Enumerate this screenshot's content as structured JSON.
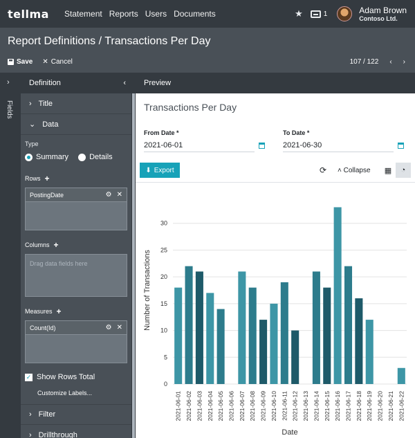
{
  "app": {
    "brand": "tellma"
  },
  "nav": {
    "items": [
      "Statement",
      "Reports",
      "Users",
      "Documents"
    ]
  },
  "header": {
    "inbox_count": "1",
    "user_name": "Adam Brown",
    "company": "Contoso Ltd."
  },
  "titlebar": {
    "title": "Report Definitions / Transactions Per Day",
    "save_label": "Save",
    "cancel_label": "Cancel",
    "pager": "107 / 122"
  },
  "fields_panel": {
    "label": "Fields"
  },
  "definition": {
    "header": "Definition",
    "sections": {
      "title": "Title",
      "data": "Data",
      "filter": "Filter",
      "drillthrough": "Drillthrough"
    },
    "type_label": "Type",
    "type_options": {
      "summary": "Summary",
      "details": "Details"
    },
    "rows_label": "Rows",
    "rows_chip": "PostingDate",
    "columns_label": "Columns",
    "columns_placeholder": "Drag data fields here",
    "measures_label": "Measures",
    "measures_chip": "Count(Id)",
    "show_rows_total": "Show Rows Total",
    "customize_labels": "Customize Labels..."
  },
  "preview": {
    "header": "Preview",
    "report_title": "Transactions Per Day",
    "from_date_label": "From Date *",
    "from_date_value": "2021-06-01",
    "to_date_label": "To Date *",
    "to_date_value": "2021-06-30",
    "export_label": "Export",
    "collapse_label": "Collapse"
  },
  "colors": {
    "accent": "#17a2b8",
    "bar_light": "#3d96a6",
    "bar_mid": "#2d7c8c",
    "bar_dark": "#1e5a69"
  },
  "chart_data": {
    "type": "bar",
    "xlabel": "Date",
    "ylabel": "Number of Transactions",
    "ylim": [
      0,
      35
    ],
    "yticks": [
      0,
      5,
      10,
      15,
      20,
      25,
      30
    ],
    "grid": true,
    "categories": [
      "2021-06-01",
      "2021-06-02",
      "2021-06-03",
      "2021-06-04",
      "2021-06-05",
      "2021-06-06",
      "2021-06-07",
      "2021-06-08",
      "2021-06-09",
      "2021-06-10",
      "2021-06-11",
      "2021-06-12",
      "2021-06-13",
      "2021-06-14",
      "2021-06-15",
      "2021-06-16",
      "2021-06-17",
      "2021-06-18",
      "2021-06-19",
      "2021-06-20",
      "2021-06-21",
      "2021-06-22"
    ],
    "values": [
      18,
      22,
      21,
      17,
      14,
      0,
      21,
      18,
      12,
      15,
      19,
      10,
      0,
      21,
      18,
      33,
      22,
      16,
      12,
      0,
      0,
      3
    ]
  }
}
